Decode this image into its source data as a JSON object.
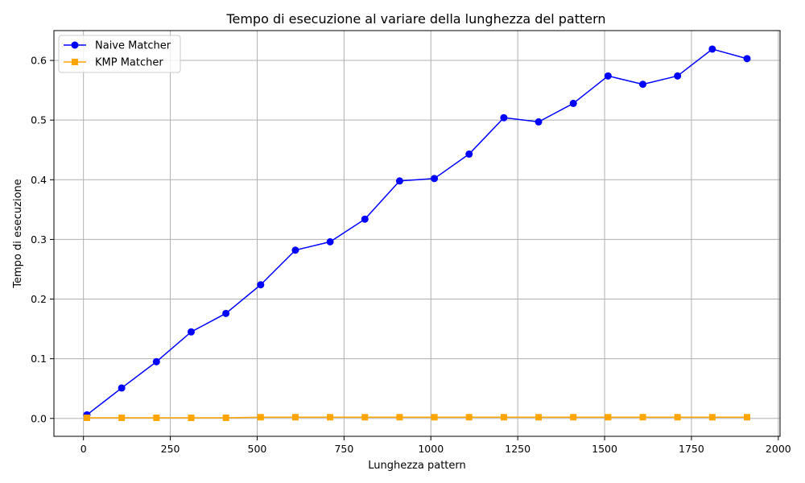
{
  "chart_data": {
    "type": "line",
    "title": "Tempo di esecuzione al variare della lunghezza del pattern",
    "xlabel": "Lunghezza pattern",
    "ylabel": "Tempo di esecuzione",
    "xlim": [
      -85,
      2005
    ],
    "ylim": [
      -0.03,
      0.65
    ],
    "xticks": [
      0,
      250,
      500,
      750,
      1000,
      1250,
      1500,
      1750,
      2000
    ],
    "yticks": [
      0.0,
      0.1,
      0.2,
      0.3,
      0.4,
      0.5,
      0.6
    ],
    "xtick_labels": [
      "0",
      "250",
      "500",
      "750",
      "1000",
      "1250",
      "1500",
      "1750",
      "2000"
    ],
    "ytick_labels": [
      "0.0",
      "0.1",
      "0.2",
      "0.3",
      "0.4",
      "0.5",
      "0.6"
    ],
    "grid": true,
    "legend_position": "top-left",
    "x": [
      10,
      110,
      210,
      310,
      410,
      510,
      610,
      710,
      810,
      910,
      1010,
      1110,
      1210,
      1310,
      1410,
      1510,
      1610,
      1710,
      1810,
      1910
    ],
    "series": [
      {
        "name": "Naive Matcher",
        "color": "#0000ff",
        "marker": "circle",
        "values": [
          0.006,
          0.051,
          0.095,
          0.145,
          0.176,
          0.224,
          0.282,
          0.296,
          0.334,
          0.398,
          0.402,
          0.443,
          0.504,
          0.497,
          0.528,
          0.574,
          0.56,
          0.574,
          0.619,
          0.603
        ]
      },
      {
        "name": "KMP Matcher",
        "color": "#ffa500",
        "marker": "square",
        "values": [
          0.001,
          0.001,
          0.001,
          0.001,
          0.001,
          0.002,
          0.002,
          0.002,
          0.002,
          0.002,
          0.002,
          0.002,
          0.002,
          0.002,
          0.002,
          0.002,
          0.002,
          0.002,
          0.002,
          0.002
        ]
      }
    ]
  }
}
